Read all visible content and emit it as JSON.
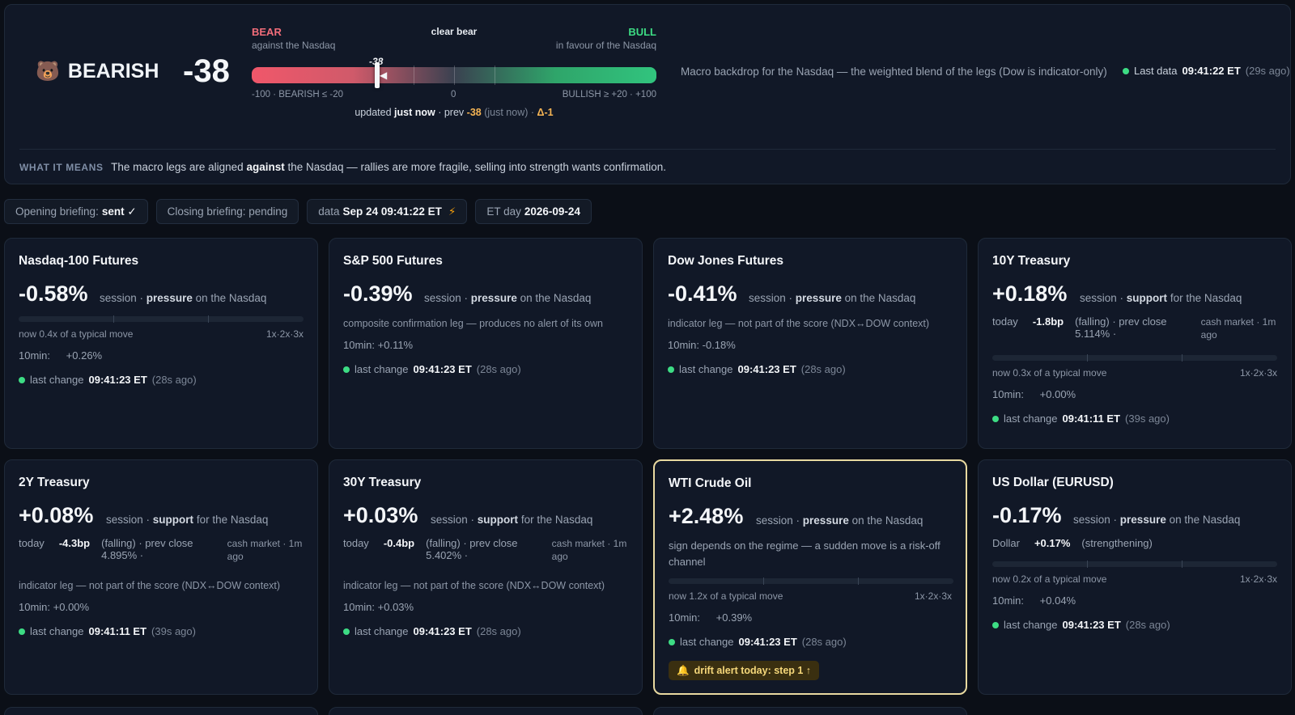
{
  "hero": {
    "regime_label": "BEARISH",
    "regime_icon": "bear-face-icon",
    "score": "-38",
    "gauge": {
      "bear_label": "BEAR",
      "bear_sub": "against the Nasdaq",
      "mid_label": "clear bear",
      "bull_label": "BULL",
      "bull_sub": "in favour of the Nasdaq",
      "marker_label": "-38",
      "score_value": -38,
      "scale_left": "-100 · BEARISH ≤ -20",
      "scale_mid": "0",
      "scale_right": "BULLISH ≥ +20 · +100",
      "update_prefix": "updated",
      "update_when": "just now",
      "update_prev_prefix": "· prev",
      "update_prev": "-38",
      "update_prev_when": "(just now) ·",
      "update_delta": "Δ-1"
    },
    "description": "Macro backdrop for the Nasdaq — the weighted blend of the legs (Dow is indicator-only)",
    "last_data_label": "Last data",
    "last_data_time": "09:41:22 ET",
    "last_data_ago": "(29s ago)",
    "means_tag": "WHAT IT MEANS",
    "means_pre": "The macro legs are aligned",
    "means_bold": "against",
    "means_post": "the Nasdaq — rallies are more fragile, selling into strength wants confirmation."
  },
  "chips": {
    "opening_label": "Opening briefing:",
    "opening_value": "sent ✓",
    "closing_label": "Closing briefing: pending",
    "data_label": "data",
    "data_value": "Sep 24 09:41:22 ET",
    "et_label": "ET day",
    "et_value": "2026-09-24"
  },
  "cards": {
    "ndx": {
      "title": "Nasdaq-100 Futures",
      "pct": "-0.58%",
      "sess_pre": "session ·",
      "sess_bold": "pressure",
      "sess_post": "on the Nasdaq",
      "bar_left": "now 0.4x of a typical move",
      "bar_right": "1x·2x·3x",
      "typical_move_x": 0.4,
      "tenmin_label": "10min:",
      "tenmin_value": "+0.26%",
      "last_label": "last change",
      "last_time": "09:41:23 ET",
      "last_ago": "(28s ago)"
    },
    "spx": {
      "title": "S&P 500 Futures",
      "pct": "-0.39%",
      "sess_pre": "session ·",
      "sess_bold": "pressure",
      "sess_post": "on the Nasdaq",
      "note": "composite confirmation leg — produces no alert of its own",
      "tenmin": "10min: +0.11%",
      "last_label": "last change",
      "last_time": "09:41:23 ET",
      "last_ago": "(28s ago)"
    },
    "dow": {
      "title": "Dow Jones Futures",
      "pct": "-0.41%",
      "sess_pre": "session ·",
      "sess_bold": "pressure",
      "sess_post": "on the Nasdaq",
      "note": "indicator leg — not part of the score (NDX↔DOW context)",
      "tenmin": "10min: -0.18%",
      "last_label": "last change",
      "last_time": "09:41:23 ET",
      "last_ago": "(28s ago)"
    },
    "t10": {
      "title": "10Y Treasury",
      "pct": "+0.18%",
      "sess_pre": "session ·",
      "sess_bold": "support",
      "sess_post": "for the Nasdaq",
      "today_label": "today",
      "today_value": "-1.8bp",
      "today_mid": "(falling) · prev close 5.114% ·",
      "today_right": "cash market · 1m ago",
      "bar_left": "now 0.3x of a typical move",
      "bar_right": "1x·2x·3x",
      "typical_move_x": 0.3,
      "tenmin_label": "10min:",
      "tenmin_value": "+0.00%",
      "last_label": "last change",
      "last_time": "09:41:11 ET",
      "last_ago": "(39s ago)"
    },
    "t2": {
      "title": "2Y Treasury",
      "pct": "+0.08%",
      "sess_pre": "session ·",
      "sess_bold": "support",
      "sess_post": "for the Nasdaq",
      "today_label": "today",
      "today_value": "-4.3bp",
      "today_mid": "(falling) · prev close 4.895% ·",
      "today_right": "cash market · 1m ago",
      "note": "indicator leg — not part of the score (NDX↔DOW context)",
      "tenmin": "10min: +0.00%",
      "last_label": "last change",
      "last_time": "09:41:11 ET",
      "last_ago": "(39s ago)"
    },
    "t30": {
      "title": "30Y Treasury",
      "pct": "+0.03%",
      "sess_pre": "session ·",
      "sess_bold": "support",
      "sess_post": "for the Nasdaq",
      "today_label": "today",
      "today_value": "-0.4bp",
      "today_mid": "(falling) · prev close 5.402% ·",
      "today_right": "cash market · 1m ago",
      "note": "indicator leg — not part of the score (NDX↔DOW context)",
      "tenmin": "10min: +0.03%",
      "last_label": "last change",
      "last_time": "09:41:23 ET",
      "last_ago": "(28s ago)"
    },
    "wti": {
      "title": "WTI Crude Oil",
      "pct": "+2.48%",
      "sess_pre": "session ·",
      "sess_bold": "pressure",
      "sess_post": "on the Nasdaq",
      "note": "sign depends on the regime — a sudden move is a risk-off channel",
      "bar_left": "now 1.2x of a typical move",
      "bar_right": "1x·2x·3x",
      "typical_move_x": 1.2,
      "tenmin_label": "10min:",
      "tenmin_value": "+0.39%",
      "last_label": "last change",
      "last_time": "09:41:23 ET",
      "last_ago": "(28s ago)",
      "alert_icon": "bell-icon",
      "alert": "drift alert today: step 1 ↑"
    },
    "usd": {
      "title": "US Dollar (EURUSD)",
      "pct": "-0.17%",
      "sess_pre": "session ·",
      "sess_bold": "pressure",
      "sess_post": "on the Nasdaq",
      "today_label": "Dollar",
      "today_value": "+0.17%",
      "today_mid": "(strengthening)",
      "bar_left": "now 0.2x of a typical move",
      "bar_right": "1x·2x·3x",
      "typical_move_x": 0.2,
      "tenmin_label": "10min:",
      "tenmin_value": "+0.04%",
      "last_label": "last change",
      "last_time": "09:41:23 ET",
      "last_ago": "(28s ago)"
    }
  },
  "colors": {
    "bear": "#f26d7a",
    "bull": "#3ddc84",
    "accent_warn": "#f5b454",
    "alert_border": "#e8d9a0"
  }
}
